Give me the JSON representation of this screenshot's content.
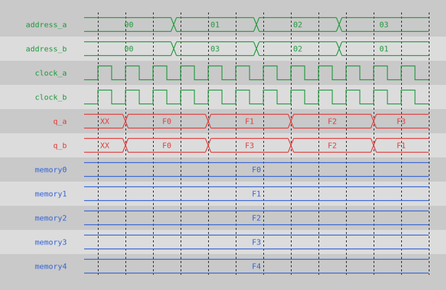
{
  "colors": {
    "bg_dark": "#c9c9c9",
    "bg_light": "#dcdcdc",
    "green": "#1f9a3c",
    "red": "#e23c3c",
    "blue": "#3464d6",
    "grid": "#222222"
  },
  "time": {
    "start": 0,
    "end": 500,
    "grid_step": 40,
    "grid_first": 20
  },
  "signals": [
    {
      "name": "address_a",
      "color": "green",
      "kind": "bus",
      "segments": [
        {
          "from": 0,
          "to": 130,
          "value": "00"
        },
        {
          "from": 130,
          "to": 250,
          "value": "01"
        },
        {
          "from": 250,
          "to": 370,
          "value": "02"
        },
        {
          "from": 370,
          "to": 500,
          "value": "03"
        }
      ]
    },
    {
      "name": "address_b",
      "color": "green",
      "kind": "bus",
      "segments": [
        {
          "from": 0,
          "to": 130,
          "value": "00"
        },
        {
          "from": 130,
          "to": 250,
          "value": "03"
        },
        {
          "from": 250,
          "to": 370,
          "value": "02"
        },
        {
          "from": 370,
          "to": 500,
          "value": "01"
        }
      ]
    },
    {
      "name": "clock_a",
      "color": "green",
      "kind": "clock",
      "first_rise": 20,
      "period": 40
    },
    {
      "name": "clock_b",
      "color": "green",
      "kind": "clock",
      "first_rise": 20,
      "period": 40
    },
    {
      "name": "q_a",
      "color": "red",
      "kind": "bus",
      "segments": [
        {
          "from": 0,
          "to": 60,
          "value": "XX"
        },
        {
          "from": 60,
          "to": 180,
          "value": "F0"
        },
        {
          "from": 180,
          "to": 300,
          "value": "F1"
        },
        {
          "from": 300,
          "to": 420,
          "value": "F2"
        },
        {
          "from": 420,
          "to": 500,
          "value": "F3"
        }
      ]
    },
    {
      "name": "q_b",
      "color": "red",
      "kind": "bus",
      "segments": [
        {
          "from": 0,
          "to": 60,
          "value": "XX"
        },
        {
          "from": 60,
          "to": 180,
          "value": "F0"
        },
        {
          "from": 180,
          "to": 300,
          "value": "F3"
        },
        {
          "from": 300,
          "to": 420,
          "value": "F2"
        },
        {
          "from": 420,
          "to": 500,
          "value": "F1"
        }
      ]
    },
    {
      "name": "memory0",
      "color": "blue",
      "kind": "bus",
      "segments": [
        {
          "from": 0,
          "to": 500,
          "value": "F0"
        }
      ]
    },
    {
      "name": "memory1",
      "color": "blue",
      "kind": "bus",
      "segments": [
        {
          "from": 0,
          "to": 500,
          "value": "F1"
        }
      ]
    },
    {
      "name": "memory2",
      "color": "blue",
      "kind": "bus",
      "segments": [
        {
          "from": 0,
          "to": 500,
          "value": "F2"
        }
      ]
    },
    {
      "name": "memory3",
      "color": "blue",
      "kind": "bus",
      "segments": [
        {
          "from": 0,
          "to": 500,
          "value": "F3"
        }
      ]
    },
    {
      "name": "memory4",
      "color": "blue",
      "kind": "bus",
      "segments": [
        {
          "from": 0,
          "to": 500,
          "value": "F4"
        }
      ]
    }
  ]
}
